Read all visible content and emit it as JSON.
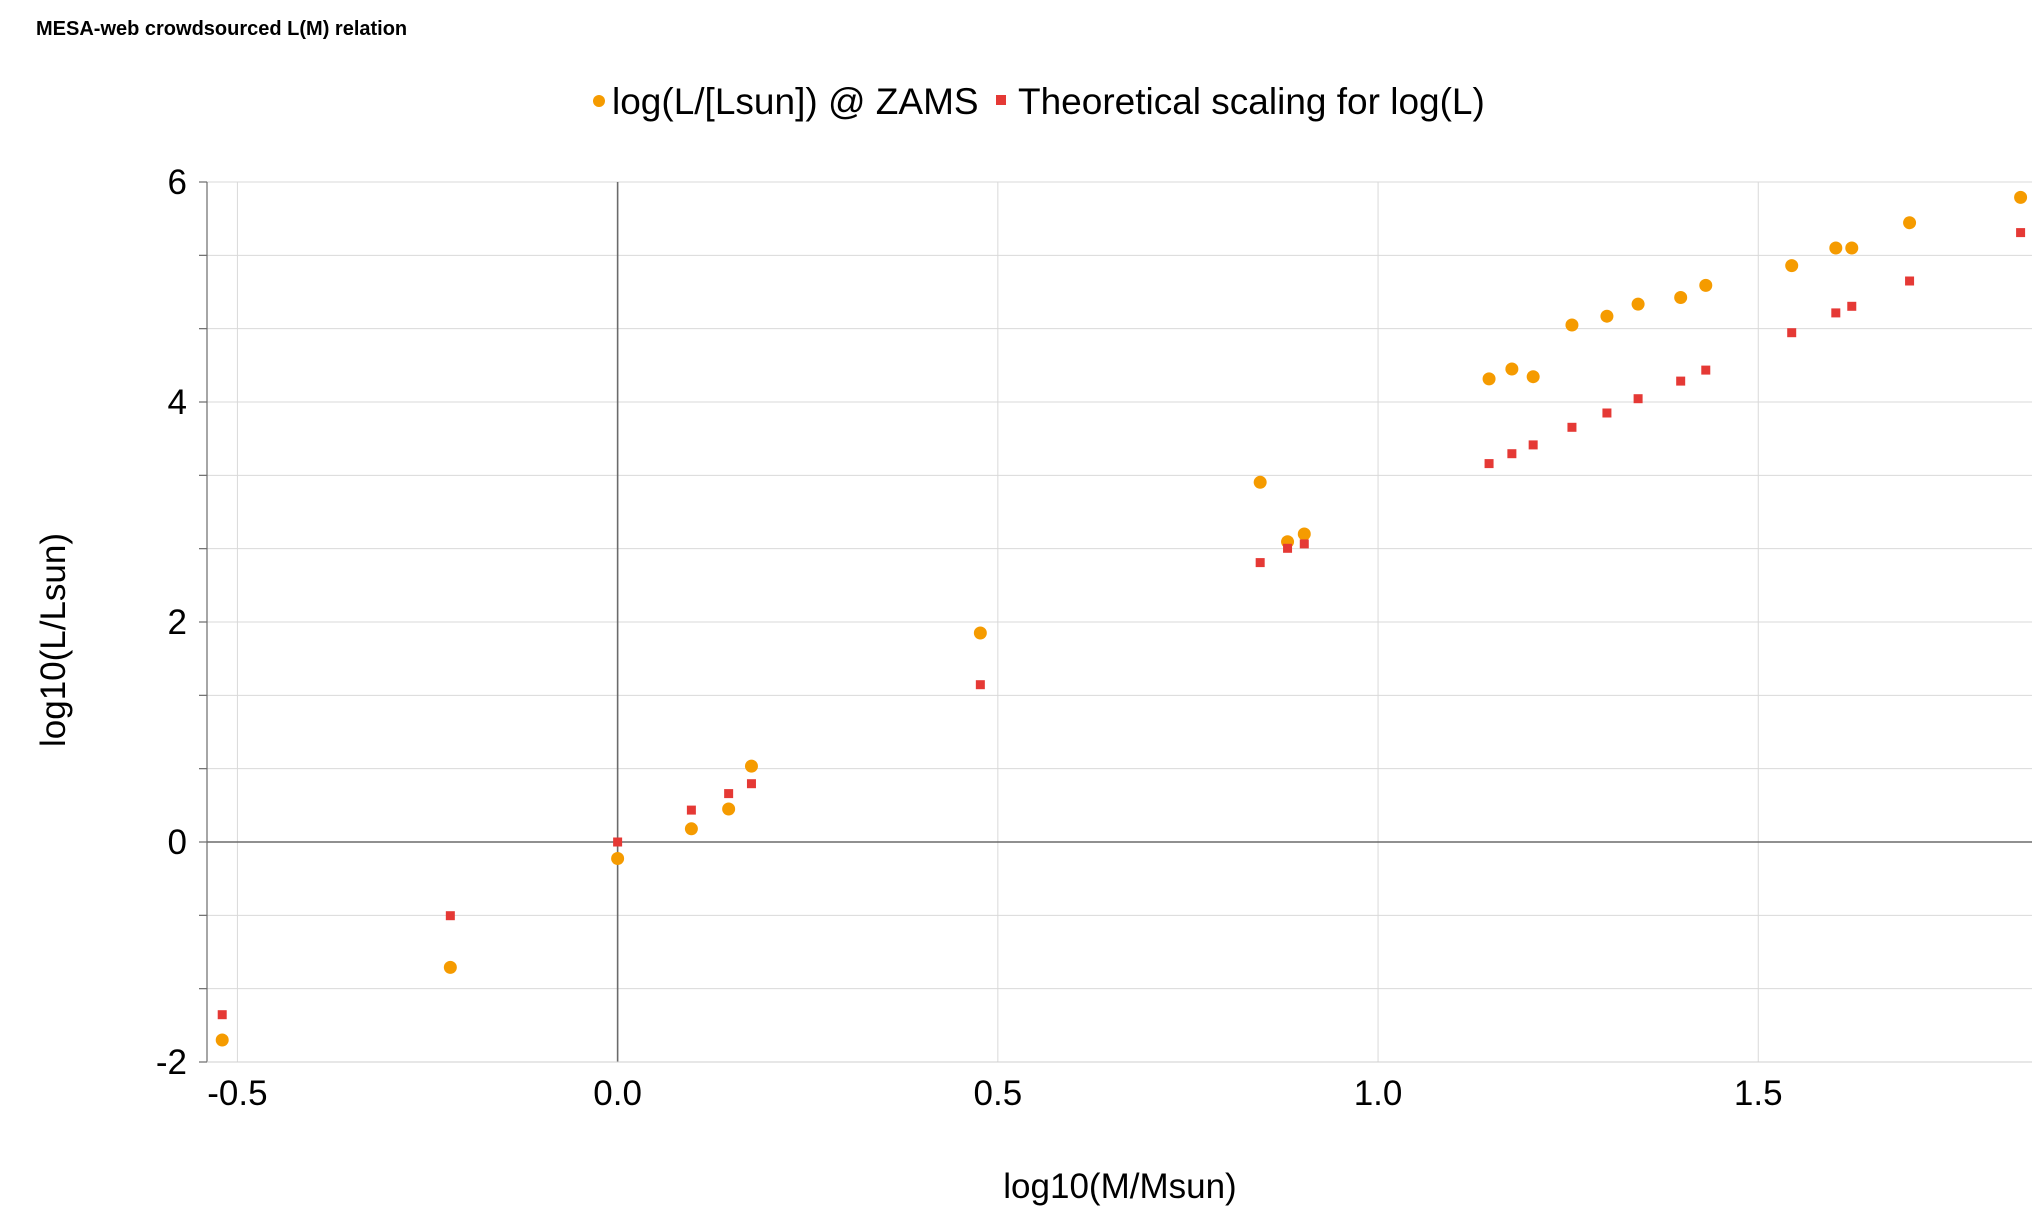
{
  "chart_data": {
    "type": "scatter",
    "title": "MESA-web crowdsourced L(M) relation",
    "xlabel": "log10(M/Msun)",
    "ylabel": "log10(L/Lsun)",
    "xlim": [
      -0.54,
      1.86
    ],
    "ylim": [
      -2,
      6
    ],
    "xticks": [
      -0.5,
      0.0,
      0.5,
      1.0,
      1.5
    ],
    "xtick_labels": [
      "-0.5",
      "0.0",
      "0.5",
      "1.0",
      "1.5"
    ],
    "yticks": [
      -2,
      0,
      2,
      4,
      6
    ],
    "ytick_labels": [
      "-2",
      "0",
      "2",
      "4",
      "6"
    ],
    "grid": true,
    "legend_position": "top-center",
    "series": [
      {
        "name": "log(L/[Lsun]) @ ZAMS",
        "color": "#f59b00",
        "marker": "circle",
        "points": [
          [
            -0.52,
            -1.8
          ],
          [
            -0.22,
            -1.14
          ],
          [
            0.0,
            -0.15
          ],
          [
            0.097,
            0.12
          ],
          [
            0.146,
            0.3
          ],
          [
            0.176,
            0.69
          ],
          [
            0.477,
            1.9
          ],
          [
            0.845,
            3.27
          ],
          [
            0.881,
            2.73
          ],
          [
            0.903,
            2.8
          ],
          [
            1.146,
            4.21
          ],
          [
            1.176,
            4.3
          ],
          [
            1.204,
            4.23
          ],
          [
            1.255,
            4.7
          ],
          [
            1.301,
            4.78
          ],
          [
            1.342,
            4.89
          ],
          [
            1.398,
            4.95
          ],
          [
            1.431,
            5.06
          ],
          [
            1.544,
            5.24
          ],
          [
            1.602,
            5.4
          ],
          [
            1.623,
            5.4
          ],
          [
            1.699,
            5.63
          ],
          [
            1.845,
            5.86
          ]
        ]
      },
      {
        "name": "Theoretical scaling for log(L)",
        "color": "#e53935",
        "marker": "square",
        "points": [
          [
            -0.52,
            -1.57
          ],
          [
            -0.22,
            -0.67
          ],
          [
            0.0,
            0.0
          ],
          [
            0.097,
            0.29
          ],
          [
            0.146,
            0.44
          ],
          [
            0.176,
            0.53
          ],
          [
            0.477,
            1.43
          ],
          [
            0.845,
            2.54
          ],
          [
            0.881,
            2.67
          ],
          [
            0.903,
            2.71
          ],
          [
            1.146,
            3.44
          ],
          [
            1.176,
            3.53
          ],
          [
            1.204,
            3.61
          ],
          [
            1.255,
            3.77
          ],
          [
            1.301,
            3.9
          ],
          [
            1.342,
            4.03
          ],
          [
            1.398,
            4.19
          ],
          [
            1.431,
            4.29
          ],
          [
            1.544,
            4.63
          ],
          [
            1.602,
            4.81
          ],
          [
            1.623,
            4.87
          ],
          [
            1.699,
            5.1
          ],
          [
            1.845,
            5.54
          ]
        ]
      }
    ]
  }
}
